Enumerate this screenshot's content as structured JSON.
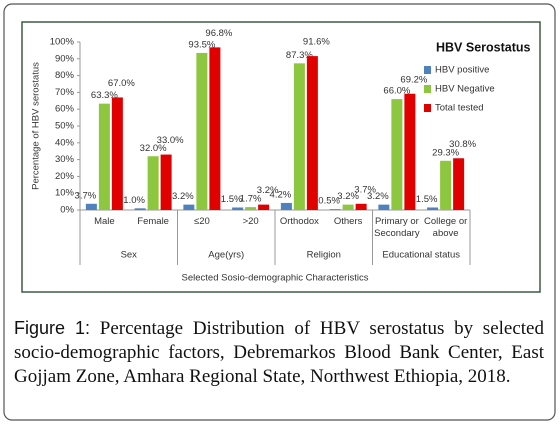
{
  "chart_data": {
    "type": "bar",
    "caption_label": "Figure 1:",
    "caption": "Percentage Distribution of HBV serostatus by selected socio-demographic factors, Debremarkos Blood Bank Center, East Gojjam Zone, Amhara Regional State, Northwest Ethiopia, 2018.",
    "y_label": "Percentage of HBV serostatus",
    "x_label": "Selected Sosio-demographic Characteristics",
    "legend_title": "HBV Serostatus",
    "legend": "top-right",
    "categories": [
      "Male",
      "Female",
      "≤20",
      ">20",
      "Orthodox",
      "Others",
      "Primary or Secondary",
      "College or above"
    ],
    "group_labels": [
      "Sex",
      "Age(yrs)",
      "Religion",
      "Educational status"
    ],
    "series": [
      {
        "name": "HBV positive",
        "color": "#4f81bd",
        "values": [
          3.7,
          1.0,
          3.2,
          1.5,
          4.2,
          0.5,
          3.2,
          1.5
        ],
        "value_labels": [
          "3.7%",
          "1.0%",
          "3.2%",
          "1.5%",
          "4.2%",
          "0.5%",
          "3.2%",
          "1.5%"
        ]
      },
      {
        "name": "HBV Negative",
        "color": "#8dc63f",
        "values": [
          63.3,
          32.0,
          93.5,
          1.7,
          87.3,
          3.2,
          66.0,
          29.3
        ],
        "value_labels": [
          "63.3%",
          "32.0%",
          "93.5%",
          "1.7%",
          "87.3%",
          "3.2%",
          "66.0%",
          "29.3%"
        ]
      },
      {
        "name": "Total tested",
        "color": "#e00000",
        "values": [
          67.0,
          33.0,
          96.8,
          3.2,
          91.6,
          3.7,
          69.2,
          30.8
        ],
        "value_labels": [
          "67.0%",
          "33.0%",
          "96.8%",
          "3.2%",
          "91.6%",
          "3.7%",
          "69.2%",
          "30.8%"
        ]
      }
    ],
    "ylim": [
      0,
      100
    ],
    "yticks": [
      {
        "value": 0,
        "label": "0%"
      },
      {
        "value": 10,
        "label": "10%"
      },
      {
        "value": 20,
        "label": "20%"
      },
      {
        "value": 30,
        "label": "30%"
      },
      {
        "value": 40,
        "label": "40%"
      },
      {
        "value": 50,
        "label": "50%"
      },
      {
        "value": 60,
        "label": "60%"
      },
      {
        "value": 70,
        "label": "70%"
      },
      {
        "value": 80,
        "label": "80%"
      },
      {
        "value": 90,
        "label": "90%"
      },
      {
        "value": 100,
        "label": "100%"
      }
    ],
    "grid": false
  }
}
